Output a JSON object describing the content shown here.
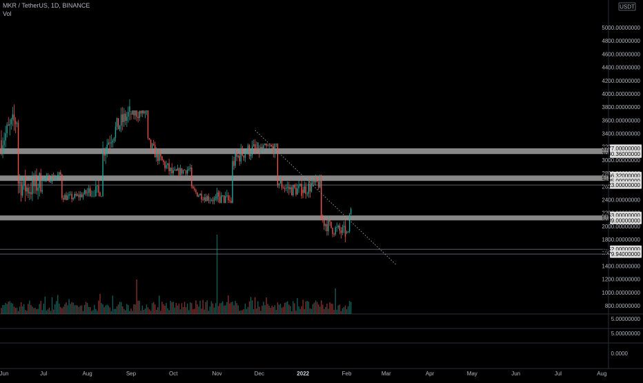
{
  "header": {
    "symbol_line": "MKR / TetherUS, 1D, BINANCE",
    "indicator": "Vol"
  },
  "price_axis": {
    "currency": "USDT",
    "ticks": [
      "5000.00000000",
      "4800.00000000",
      "4600.00000000",
      "4400.00000000",
      "4200.00000000",
      "4000.00000000",
      "3800.00000000",
      "3600.00000000",
      "3400.00000000",
      "3200.00000000",
      "3000.00000000",
      "2800.00000000",
      "2600.00000000",
      "2400.00000000",
      "2200.00000000",
      "2000.00000000",
      "1800.00000000",
      "1600.00000000",
      "1400.00000000",
      "1200.00000000",
      "1000.00000000",
      "800.00000000"
    ],
    "sub_ticks": [
      "5.00000000",
      "5.00000000",
      "0.0000"
    ]
  },
  "time_axis": {
    "labels": [
      "Jun",
      "Jul",
      "Aug",
      "Sep",
      "Oct",
      "Nov",
      "Dec",
      "2022",
      "Feb",
      "Mar",
      "Apr",
      "May",
      "Jun",
      "Jul",
      "Aug"
    ],
    "bold_label": "2022"
  },
  "levels": {
    "zones": [
      {
        "top": 3177.0,
        "bottom": 3090.36,
        "top_label": "3177.00000000",
        "bottom_label": "3090.36000000"
      },
      {
        "top": 2766.32,
        "bottom": 2685.0,
        "top_label": "2766.32000000",
        "bottom_label": "2685.00000000"
      },
      {
        "top": 2163.0,
        "bottom": 2089.0,
        "top_label": "2163.00000000",
        "bottom_label": "2089.00000000"
      }
    ],
    "lines": [
      {
        "value": 2623.0,
        "label": "2623.00000000"
      },
      {
        "value": 1652.0,
        "label": "1652.00000000"
      },
      {
        "value": 1579.94,
        "label": "1579.94000000"
      }
    ]
  },
  "colors": {
    "up": "#26a69a",
    "down": "#ef5350",
    "zone": "#bdbdbd",
    "text": "#b2b5be",
    "label_bg": "#e0e0e0"
  },
  "chart_data": {
    "type": "candlestick",
    "symbol": "MKR / TetherUS",
    "interval": "1D",
    "exchange": "BINANCE",
    "ylim": [
      800,
      5000
    ],
    "x_range": [
      "2021-06",
      "2022-08"
    ],
    "monthly_path": [
      {
        "month": "Jun 2021",
        "open": 3300,
        "high": 4000,
        "low": 1950,
        "close": 2700
      },
      {
        "month": "Jul 2021",
        "open": 2700,
        "high": 2850,
        "low": 2200,
        "close": 2500
      },
      {
        "month": "Aug 2021",
        "open": 2500,
        "high": 4050,
        "low": 2450,
        "close": 3700
      },
      {
        "month": "Sep 2021",
        "open": 3700,
        "high": 3750,
        "low": 2700,
        "close": 2800
      },
      {
        "month": "Oct 2021",
        "open": 2800,
        "high": 2950,
        "low": 2250,
        "close": 2400
      },
      {
        "month": "Nov 2021",
        "open": 2400,
        "high": 3650,
        "low": 2350,
        "close": 3150
      },
      {
        "month": "Dec 2021",
        "open": 3150,
        "high": 3250,
        "low": 2150,
        "close": 2550
      },
      {
        "month": "Jan 2022",
        "open": 2550,
        "high": 2780,
        "low": 1600,
        "close": 1900
      },
      {
        "month": "Feb 2022",
        "open": 1900,
        "high": 2300,
        "low": 1880,
        "close": 2250
      }
    ],
    "trendline": {
      "from": {
        "date": "2021-11-28",
        "price": 3450
      },
      "to": {
        "date": "2022-03-08",
        "price": 1420
      }
    },
    "volume_peaks": [
      "2021-11-01",
      "2021-09-05",
      "2022-01-24"
    ],
    "grid": false
  }
}
